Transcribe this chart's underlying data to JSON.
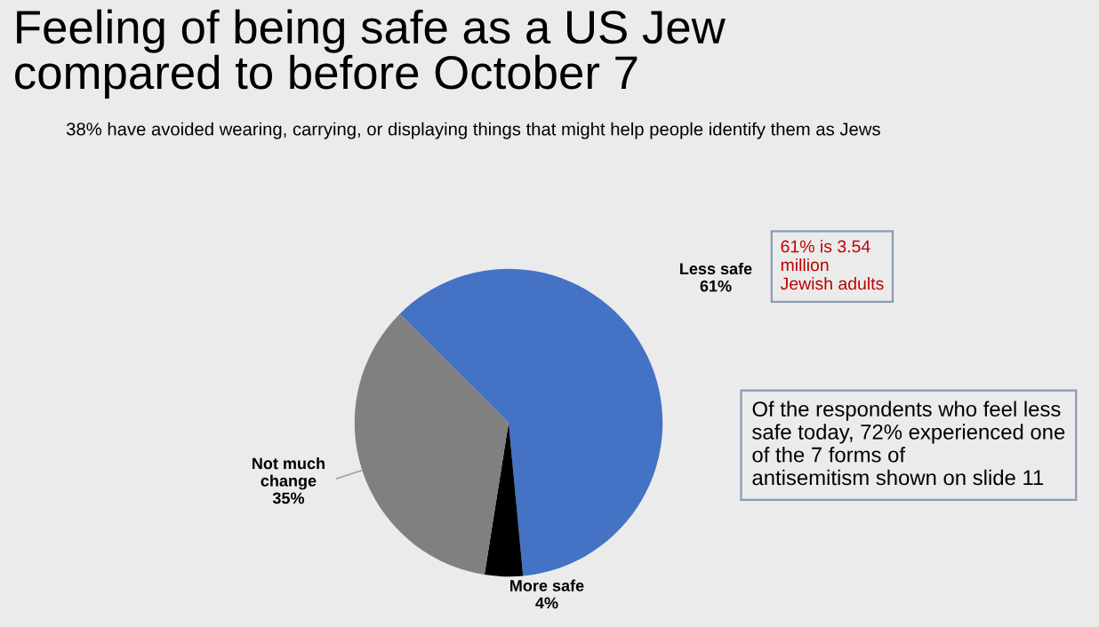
{
  "chart_data": {
    "type": "pie",
    "title": "Feeling of being safe as a US Jew\ncompared to before October 7",
    "subtitle": "38% have avoided wearing, carrying, or displaying things that might help people identify them as Jews",
    "categories": [
      "Less safe",
      "More safe",
      "Not much change"
    ],
    "values": [
      61,
      4,
      35
    ],
    "value_labels": [
      "61%",
      "4%",
      "35%"
    ],
    "colors": [
      "#4472c4",
      "#000000",
      "#808080"
    ],
    "annotations": [
      "61% is 3.54 million Jewish adults",
      "Of the respondents who feel less safe today, 72% experienced one of the 7 forms of antisemitism shown on slide 11"
    ],
    "legend": false
  }
}
